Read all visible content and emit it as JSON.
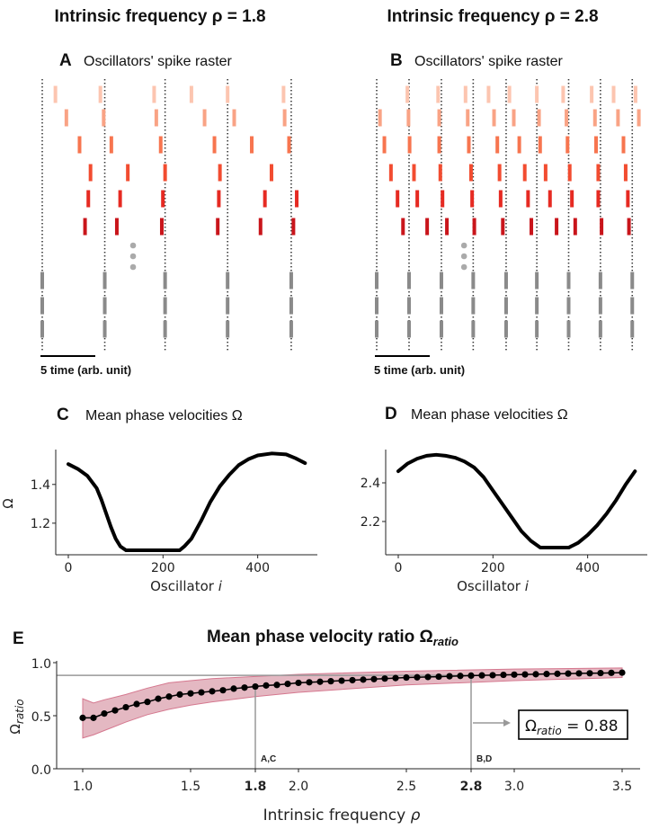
{
  "titles": {
    "left": "Intrinsic frequency ρ = 1.8",
    "right": "Intrinsic frequency ρ = 2.8"
  },
  "colors": {
    "rows": [
      "#fcc5b0",
      "#f9a385",
      "#f7754f",
      "#f24c30",
      "#e62a22",
      "#c9151b"
    ],
    "gray": "#8a8a8a",
    "band": "#d89aa8",
    "band_edge": "#d5788f",
    "curve": "#000000"
  },
  "chart_data": [
    {
      "type": "raster",
      "letter": "A",
      "title": "Oscillators' spike raster",
      "scale_label": "5 time (arb. unit)",
      "scale_length": 5,
      "xlim": [
        0,
        25
      ],
      "reference_times": [
        0,
        5.7,
        11.2,
        16.9,
        22.7
      ],
      "rows": [
        [
          1.2,
          5.3,
          10.2,
          13.6,
          16.9,
          22.0
        ],
        [
          2.2,
          5.6,
          10.4,
          14.8,
          17.5,
          22.1
        ],
        [
          3.4,
          6.3,
          10.8,
          15.7,
          19.1,
          22.5
        ],
        [
          4.4,
          7.8,
          11.2,
          16.2,
          20.9
        ],
        [
          4.2,
          7.1,
          11.0,
          16.1,
          20.3,
          23.2
        ],
        [
          3.9,
          6.8,
          10.9,
          16.0,
          19.9,
          22.9
        ]
      ],
      "gray_rows": 3
    },
    {
      "type": "raster",
      "letter": "B",
      "title": "Oscillators' spike raster",
      "scale_label": "5 time (arb. unit)",
      "scale_length": 5,
      "xlim": [
        0,
        25
      ],
      "reference_times": [
        0,
        2.95,
        5.9,
        8.8,
        11.8,
        14.6,
        17.5,
        20.4,
        23.3
      ],
      "rows": [
        [
          2.8,
          5.6,
          8.1,
          10.2,
          12.1,
          14.6,
          17.0,
          19.6,
          21.6,
          23.6
        ],
        [
          0.3,
          2.9,
          5.7,
          8.3,
          10.7,
          12.5,
          14.8,
          17.3,
          19.9,
          22.0,
          23.9
        ],
        [
          0.7,
          3.0,
          5.7,
          8.4,
          11.0,
          13.0,
          14.9,
          17.4,
          20.0,
          22.5
        ],
        [
          1.3,
          3.4,
          5.8,
          8.6,
          11.2,
          13.5,
          15.4,
          17.6,
          20.2,
          22.7
        ],
        [
          1.9,
          3.7,
          6.0,
          8.7,
          11.3,
          13.8,
          15.8,
          17.8,
          20.2,
          22.9
        ],
        [
          2.4,
          4.6,
          6.4,
          8.9,
          11.5,
          14.1,
          16.4,
          18.1,
          20.5,
          23.0
        ]
      ],
      "gray_rows": 3
    },
    {
      "type": "line",
      "letter": "C",
      "title": "Mean phase velocities Ω",
      "xlabel": "Oscillator ",
      "xlabel_italic": "i",
      "ylabel": "Ω",
      "xlim": [
        -26.6,
        526
      ],
      "ylim": [
        1.037,
        1.58
      ],
      "xticks": [
        0,
        200,
        400
      ],
      "xtick_labels": [
        "0",
        "200",
        "400"
      ],
      "yticks": [
        1.2,
        1.4
      ],
      "ytick_labels": [
        "1.2",
        "1.4"
      ],
      "points": [
        [
          0,
          1.505
        ],
        [
          20,
          1.48
        ],
        [
          40,
          1.445
        ],
        [
          60,
          1.38
        ],
        [
          70,
          1.32
        ],
        [
          80,
          1.25
        ],
        [
          90,
          1.18
        ],
        [
          100,
          1.12
        ],
        [
          110,
          1.08
        ],
        [
          122,
          1.06
        ],
        [
          235,
          1.06
        ],
        [
          245,
          1.08
        ],
        [
          260,
          1.12
        ],
        [
          280,
          1.21
        ],
        [
          300,
          1.31
        ],
        [
          320,
          1.39
        ],
        [
          340,
          1.45
        ],
        [
          360,
          1.5
        ],
        [
          380,
          1.53
        ],
        [
          400,
          1.55
        ],
        [
          430,
          1.56
        ],
        [
          460,
          1.555
        ],
        [
          480,
          1.535
        ],
        [
          500,
          1.51
        ]
      ]
    },
    {
      "type": "line",
      "letter": "D",
      "title": "Mean phase velocities Ω",
      "xlabel": "Oscillator ",
      "xlabel_italic": "i",
      "ylabel": "",
      "xlim": [
        -26.6,
        526
      ],
      "ylim": [
        2.028,
        2.572
      ],
      "xticks": [
        0,
        200,
        400
      ],
      "xtick_labels": [
        "0",
        "200",
        "400"
      ],
      "yticks": [
        2.2,
        2.4
      ],
      "ytick_labels": [
        "2.2",
        "2.4"
      ],
      "points": [
        [
          0,
          2.46
        ],
        [
          20,
          2.5
        ],
        [
          40,
          2.525
        ],
        [
          60,
          2.54
        ],
        [
          80,
          2.545
        ],
        [
          100,
          2.54
        ],
        [
          120,
          2.53
        ],
        [
          140,
          2.51
        ],
        [
          160,
          2.48
        ],
        [
          180,
          2.43
        ],
        [
          200,
          2.36
        ],
        [
          220,
          2.29
        ],
        [
          240,
          2.22
        ],
        [
          260,
          2.15
        ],
        [
          280,
          2.1
        ],
        [
          300,
          2.065
        ],
        [
          360,
          2.065
        ],
        [
          380,
          2.09
        ],
        [
          400,
          2.13
        ],
        [
          420,
          2.18
        ],
        [
          440,
          2.24
        ],
        [
          460,
          2.31
        ],
        [
          480,
          2.39
        ],
        [
          500,
          2.46
        ]
      ]
    },
    {
      "type": "line",
      "letter": "E",
      "title": "Mean phase velocity ratio Ω",
      "title_sub": "ratio",
      "xlabel": "Intrinsic frequency ",
      "xlabel_italic": "ρ",
      "ylabel": "Ω",
      "ylabel_sub": "ratio",
      "xlim": [
        0.88,
        3.57
      ],
      "ylim": [
        0,
        1.0
      ],
      "xticks": [
        1.0,
        1.5,
        1.8,
        2.0,
        2.5,
        2.8,
        3.0,
        3.5
      ],
      "xtick_labels": [
        "1.0",
        "1.5",
        "1.8",
        "2.0",
        "2.5",
        "2.8",
        "3.0",
        "3.5"
      ],
      "bold_xticks": [
        "1.8",
        "2.8"
      ],
      "yticks": [
        0,
        0.5,
        1.0
      ],
      "ytick_labels": [
        "0.0",
        "0.5",
        "1.0"
      ],
      "x": [
        1.0,
        1.05,
        1.1,
        1.15,
        1.2,
        1.25,
        1.3,
        1.35,
        1.4,
        1.45,
        1.5,
        1.55,
        1.6,
        1.65,
        1.7,
        1.75,
        1.8,
        1.85,
        1.9,
        1.95,
        2.0,
        2.05,
        2.1,
        2.15,
        2.2,
        2.25,
        2.3,
        2.35,
        2.4,
        2.45,
        2.5,
        2.55,
        2.6,
        2.65,
        2.7,
        2.75,
        2.8,
        2.85,
        2.9,
        2.95,
        3.0,
        3.05,
        3.1,
        3.15,
        3.2,
        3.25,
        3.3,
        3.35,
        3.4,
        3.45,
        3.5
      ],
      "mean": [
        0.48,
        0.48,
        0.52,
        0.55,
        0.58,
        0.61,
        0.63,
        0.66,
        0.68,
        0.7,
        0.71,
        0.72,
        0.73,
        0.74,
        0.755,
        0.765,
        0.775,
        0.785,
        0.79,
        0.8,
        0.81,
        0.815,
        0.82,
        0.825,
        0.83,
        0.835,
        0.84,
        0.845,
        0.85,
        0.855,
        0.86,
        0.862,
        0.865,
        0.868,
        0.872,
        0.875,
        0.878,
        0.88,
        0.882,
        0.885,
        0.887,
        0.889,
        0.891,
        0.893,
        0.895,
        0.897,
        0.899,
        0.9,
        0.902,
        0.904,
        0.906
      ],
      "band_x": [
        1.0,
        1.05,
        1.1,
        1.2,
        1.3,
        1.4,
        1.5,
        1.6,
        1.8,
        2.0,
        2.5,
        3.0,
        3.5
      ],
      "band_upper": [
        0.66,
        0.62,
        0.65,
        0.7,
        0.76,
        0.81,
        0.83,
        0.85,
        0.87,
        0.89,
        0.92,
        0.94,
        0.95
      ],
      "band_lower": [
        0.29,
        0.32,
        0.36,
        0.44,
        0.51,
        0.56,
        0.6,
        0.63,
        0.68,
        0.72,
        0.79,
        0.83,
        0.86
      ],
      "markers": [
        {
          "x": 1.8,
          "label": "A,C"
        },
        {
          "x": 2.8,
          "label": "B,D"
        }
      ],
      "ref_value": 0.88,
      "annotation": {
        "prefix": "Ω",
        "sub": "ratio",
        "text": " = 0.88"
      }
    }
  ]
}
